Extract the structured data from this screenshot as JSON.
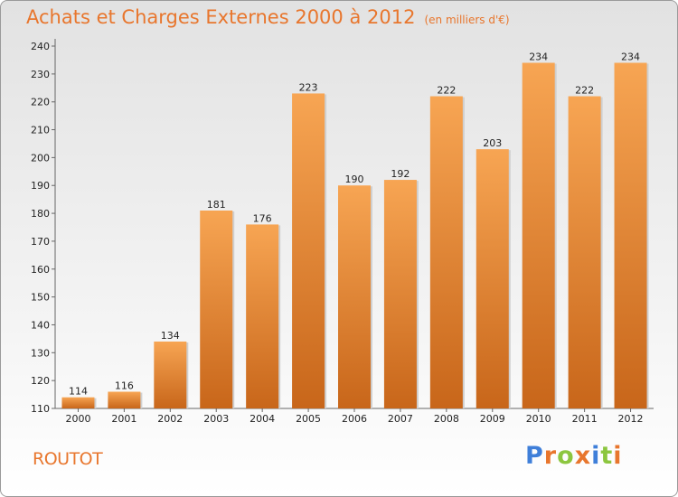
{
  "header": {
    "title": "Achats et Charges Externes 2000 à 2012",
    "subtitle": "(en milliers d'€)"
  },
  "footer": {
    "place": "ROUTOT",
    "logo": "Proxiti",
    "logo_colors": [
      "#3f7fd9",
      "#e8762d",
      "#8cc63f",
      "#e8762d",
      "#3f7fd9",
      "#8cc63f",
      "#e8762d"
    ]
  },
  "colors": {
    "bar_top": "#f7a553",
    "bar_bottom": "#c8661a",
    "accent": "#e8762d"
  },
  "chart_data": {
    "type": "bar",
    "title": "Achats et Charges Externes 2000 à 2012",
    "subtitle": "(en milliers d'€)",
    "categories": [
      "2000",
      "2001",
      "2002",
      "2003",
      "2004",
      "2005",
      "2006",
      "2007",
      "2008",
      "2009",
      "2010",
      "2011",
      "2012"
    ],
    "values": [
      114,
      116,
      134,
      181,
      176,
      223,
      190,
      192,
      222,
      203,
      234,
      222,
      234
    ],
    "yticks": [
      110,
      120,
      130,
      140,
      150,
      160,
      170,
      180,
      190,
      200,
      210,
      220,
      230,
      240
    ],
    "ylim": [
      110,
      240
    ],
    "grid": false,
    "legend": "none"
  }
}
